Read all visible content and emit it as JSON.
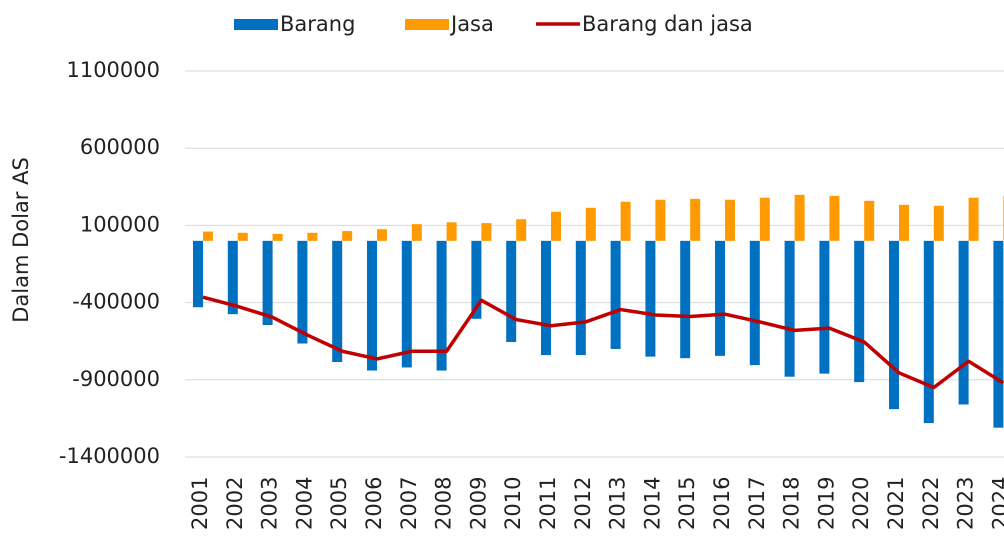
{
  "chart_data": {
    "type": "bar_line",
    "y_axis_label": "Dalam Dolar AS",
    "categories": [
      "2001",
      "2002",
      "2003",
      "2004",
      "2005",
      "2006",
      "2007",
      "2008",
      "2009",
      "2010",
      "2011",
      "2012",
      "2013",
      "2014",
      "2015",
      "2016",
      "2017",
      "2018",
      "2019",
      "2020",
      "2021",
      "2022",
      "2023",
      "2024"
    ],
    "series": [
      {
        "name": "Barang",
        "kind": "bar",
        "color": "#0070c0",
        "values": [
          -430000,
          -475000,
          -545000,
          -665000,
          -785000,
          -840000,
          -820000,
          -840000,
          -505000,
          -655000,
          -740000,
          -740000,
          -700000,
          -750000,
          -760000,
          -745000,
          -805000,
          -880000,
          -860000,
          -915000,
          -1090000,
          -1180000,
          -1060000,
          -1210000
        ]
      },
      {
        "name": "Jasa",
        "kind": "bar",
        "color": "#ff9a00",
        "values": [
          60000,
          52000,
          45000,
          52000,
          63000,
          75000,
          108000,
          120000,
          115000,
          140000,
          188000,
          214000,
          253000,
          266000,
          272000,
          266000,
          279000,
          298000,
          291000,
          259000,
          233000,
          227000,
          279000,
          291000
        ]
      },
      {
        "name": "Barang dan jasa",
        "kind": "line",
        "color": "#c00000",
        "values": [
          -365000,
          -425000,
          -495000,
          -610000,
          -715000,
          -765000,
          -715000,
          -715000,
          -385000,
          -510000,
          -550000,
          -525000,
          -445000,
          -480000,
          -490000,
          -475000,
          -525000,
          -580000,
          -565000,
          -655000,
          -855000,
          -950000,
          -780000,
          -920000
        ]
      }
    ],
    "ylim": [
      -1400000,
      1100000
    ],
    "yticks": [
      -1400000,
      -900000,
      -400000,
      100000,
      600000,
      1100000
    ],
    "grid": true,
    "legend": "top"
  }
}
